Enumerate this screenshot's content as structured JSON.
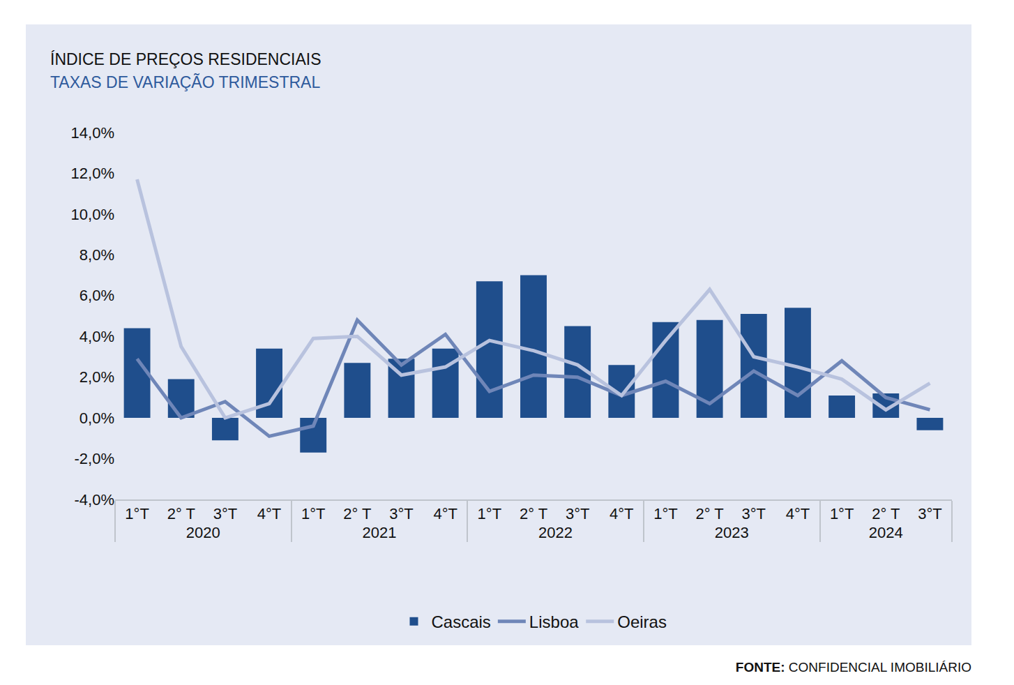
{
  "chart_data": {
    "type": "bar",
    "title": "ÍNDICE DE PREÇOS RESIDENCIAIS",
    "subtitle": "TAXAS DE VARIAÇÃO TRIMESTRAL",
    "source_label": "FONTE:",
    "source": "CONFIDENCIAL IMOBILIÁRIO",
    "groups": [
      "2020",
      "2020",
      "2020",
      "2020",
      "2021",
      "2021",
      "2021",
      "2021",
      "2022",
      "2022",
      "2022",
      "2022",
      "2023",
      "2023",
      "2023",
      "2023",
      "2024",
      "2024",
      "2024"
    ],
    "categories": [
      "1°T",
      "2° T",
      "3°T",
      "4°T",
      "1°T",
      "2° T",
      "3°T",
      "4°T",
      "1°T",
      "2° T",
      "3°T",
      "4°T",
      "1°T",
      "2° T",
      "3°T",
      "4°T",
      "1°T",
      "2° T",
      "3°T"
    ],
    "series": [
      {
        "name": "Cascais",
        "type": "bar",
        "color": "#1f4e8c",
        "values": [
          4.4,
          1.9,
          -1.1,
          3.4,
          -1.7,
          2.7,
          2.9,
          3.4,
          6.7,
          7.0,
          4.5,
          2.6,
          4.7,
          4.8,
          5.1,
          5.4,
          1.1,
          1.2,
          -0.6
        ]
      },
      {
        "name": "Lisboa",
        "type": "line",
        "color": "#6f86b8",
        "values": [
          2.9,
          0.0,
          0.8,
          -0.9,
          -0.4,
          4.8,
          2.6,
          4.1,
          1.3,
          2.1,
          2.0,
          1.1,
          1.8,
          0.7,
          2.3,
          1.1,
          2.8,
          1.0,
          0.4
        ]
      },
      {
        "name": "Oeiras",
        "type": "line",
        "color": "#b8c2de",
        "values": [
          11.7,
          3.5,
          0.0,
          0.7,
          3.9,
          4.0,
          2.1,
          2.5,
          3.8,
          3.3,
          2.6,
          1.1,
          3.8,
          6.3,
          3.0,
          2.5,
          1.9,
          0.4,
          1.7
        ]
      }
    ],
    "ylim": [
      -4,
      14
    ],
    "yticks": [
      {
        "value": -4,
        "label": "-4,0%"
      },
      {
        "value": -2,
        "label": "-2,0%"
      },
      {
        "value": 0,
        "label": "0,0%"
      },
      {
        "value": 2,
        "label": "2,0%"
      },
      {
        "value": 4,
        "label": "4,0%"
      },
      {
        "value": 6,
        "label": "6,0%"
      },
      {
        "value": 8,
        "label": "8,0%"
      },
      {
        "value": 10,
        "label": "10,0%"
      },
      {
        "value": 12,
        "label": "12,0%"
      },
      {
        "value": 14,
        "label": "14,0%"
      }
    ],
    "grid": false,
    "legend": "bottom"
  }
}
